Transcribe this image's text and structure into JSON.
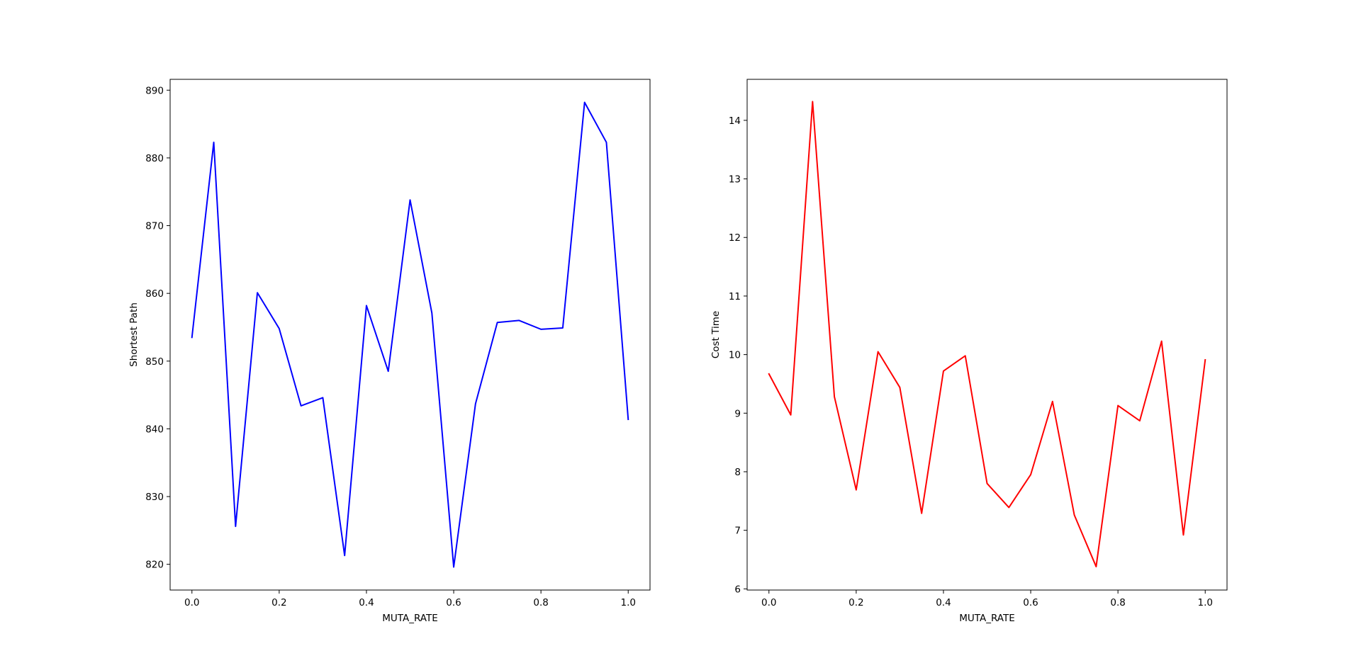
{
  "chart_data": [
    {
      "type": "line",
      "xlabel": "MUTA_RATE",
      "ylabel": "Shortest Path",
      "xlim": [
        -0.05,
        1.05
      ],
      "ylim": [
        816.2,
        891.6
      ],
      "xticks": [
        0.0,
        0.2,
        0.4,
        0.6,
        0.8,
        1.0
      ],
      "xtick_labels": [
        "0.0",
        "0.2",
        "0.4",
        "0.6",
        "0.8",
        "1.0"
      ],
      "yticks": [
        820,
        830,
        840,
        850,
        860,
        870,
        880,
        890
      ],
      "ytick_labels": [
        "820",
        "830",
        "840",
        "850",
        "860",
        "870",
        "880",
        "890"
      ],
      "grid": false,
      "series": [
        {
          "color": "#0000ff",
          "x": [
            0.0,
            0.05,
            0.1,
            0.15,
            0.2,
            0.25,
            0.3,
            0.35,
            0.4,
            0.45,
            0.5,
            0.55,
            0.6,
            0.65,
            0.7,
            0.75,
            0.8,
            0.85,
            0.9,
            0.95,
            1.0
          ],
          "values": [
            853.5,
            882.3,
            825.6,
            860.1,
            854.8,
            843.4,
            844.6,
            821.3,
            858.2,
            848.5,
            873.8,
            857.1,
            819.6,
            843.7,
            855.7,
            856.0,
            854.7,
            854.9,
            888.2,
            882.3,
            841.4
          ]
        }
      ]
    },
    {
      "type": "line",
      "xlabel": "MUTA_RATE",
      "ylabel": "Cost Time",
      "xlim": [
        -0.05,
        1.05
      ],
      "ylim": [
        5.98,
        14.7
      ],
      "xticks": [
        0.0,
        0.2,
        0.4,
        0.6,
        0.8,
        1.0
      ],
      "xtick_labels": [
        "0.0",
        "0.2",
        "0.4",
        "0.6",
        "0.8",
        "1.0"
      ],
      "yticks": [
        6,
        7,
        8,
        9,
        10,
        11,
        12,
        13,
        14
      ],
      "ytick_labels": [
        "6",
        "7",
        "8",
        "9",
        "10",
        "11",
        "12",
        "13",
        "14"
      ],
      "grid": false,
      "series": [
        {
          "color": "#ff0000",
          "x": [
            0.0,
            0.05,
            0.1,
            0.15,
            0.2,
            0.25,
            0.3,
            0.35,
            0.4,
            0.45,
            0.5,
            0.55,
            0.6,
            0.65,
            0.7,
            0.75,
            0.8,
            0.85,
            0.9,
            0.95,
            1.0
          ],
          "values": [
            9.67,
            8.97,
            14.32,
            9.28,
            7.69,
            10.05,
            9.44,
            7.29,
            9.72,
            9.98,
            7.8,
            7.39,
            7.95,
            9.2,
            7.26,
            6.38,
            9.13,
            8.87,
            10.23,
            6.92,
            9.91
          ]
        }
      ]
    }
  ]
}
